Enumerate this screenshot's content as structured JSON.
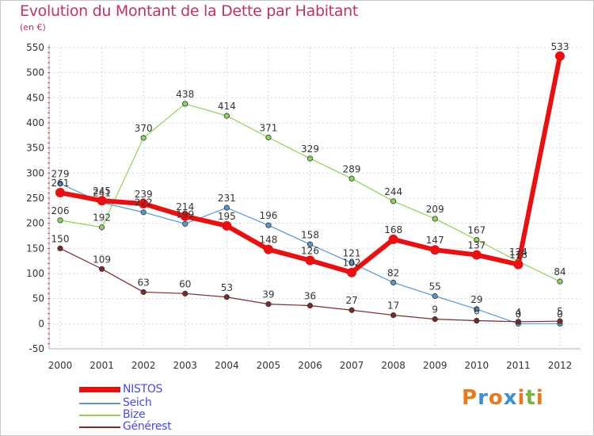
{
  "header": {
    "title": "Evolution du Montant de la Dette par Habitant",
    "unit": "(en €)"
  },
  "logo": {
    "text": "Proxiti",
    "letters": [
      "P",
      "r",
      "o",
      "x",
      "i",
      "t",
      "i"
    ],
    "colors": [
      "#e8791e",
      "#3b8fd4",
      "#e8791e",
      "#3b8fd4",
      "#e8791e",
      "#7ab43c",
      "#e8791e"
    ]
  },
  "chart_data": {
    "type": "line",
    "title": "Evolution du Montant de la Dette par Habitant",
    "subtitle": "(en €)",
    "xlabel": "",
    "ylabel": "",
    "x": [
      "2000",
      "2001",
      "2002",
      "2003",
      "2004",
      "2005",
      "2006",
      "2007",
      "2008",
      "2009",
      "2010",
      "2011",
      "2012"
    ],
    "ylim": [
      -50,
      550
    ],
    "yticks": [
      -50,
      0,
      50,
      100,
      150,
      200,
      250,
      300,
      350,
      400,
      450,
      500,
      550
    ],
    "grid": true,
    "legend": "bottom-left",
    "series": [
      {
        "name": "Bize",
        "color": "#8ed35a",
        "width": 1.2,
        "values": [
          206,
          192,
          370,
          438,
          414,
          371,
          329,
          289,
          244,
          209,
          167,
          124,
          84
        ],
        "labels": [
          "206",
          "192",
          "370",
          "438",
          "414",
          "371",
          "329",
          "289",
          "244",
          "209",
          "167",
          "124",
          "84"
        ]
      },
      {
        "name": "Seich",
        "color": "#5a97cf",
        "width": 1.2,
        "values": [
          279,
          241,
          222,
          199,
          231,
          196,
          158,
          121,
          82,
          55,
          29,
          0,
          0
        ],
        "labels": [
          "279",
          "241",
          "222",
          "199",
          "231",
          "196",
          "158",
          "121",
          "82",
          "55",
          "29",
          "0",
          "0"
        ]
      },
      {
        "name": "Générest",
        "color": "#7a2a2a",
        "width": 1.2,
        "values": [
          150,
          109,
          63,
          60,
          53,
          39,
          36,
          27,
          17,
          9,
          6,
          4,
          5
        ],
        "labels": [
          "150",
          "109",
          "63",
          "60",
          "53",
          "39",
          "36",
          "27",
          "17",
          "9",
          "6",
          "4",
          "5"
        ]
      },
      {
        "name": "NISTOS",
        "color": "#e81010",
        "width": 6,
        "values": [
          261,
          245,
          239,
          214,
          195,
          148,
          126,
          102,
          168,
          147,
          137,
          118,
          533
        ],
        "labels": [
          "261",
          "245",
          "239",
          "214",
          "195",
          "148",
          "126",
          "102",
          "168",
          "147",
          "137",
          "118",
          "533"
        ]
      }
    ]
  },
  "legend": {
    "items": [
      {
        "name": "NISTOS",
        "color": "#e81010",
        "thick": true
      },
      {
        "name": "Seich",
        "color": "#5a97cf",
        "thick": false
      },
      {
        "name": "Bize",
        "color": "#8ed35a",
        "thick": false
      },
      {
        "name": "Générest",
        "color": "#7a2a2a",
        "thick": false
      }
    ]
  }
}
